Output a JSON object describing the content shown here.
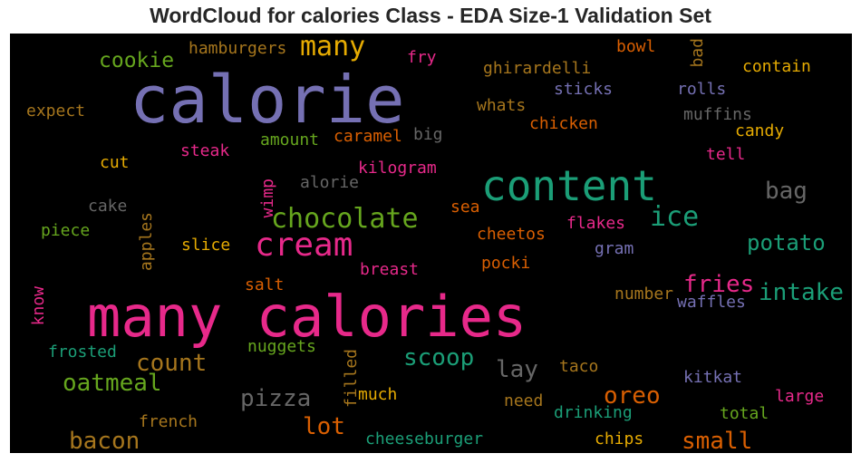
{
  "title": "WordCloud for calories Class - EDA Size-1 Validation Set",
  "colors": {
    "purple": "#7570b3",
    "pink": "#e7298a",
    "teal": "#1b9e77",
    "green": "#66a61e",
    "orange": "#d95f02",
    "gold": "#e6ab02",
    "brown": "#a6761d",
    "gray": "#666666"
  },
  "words": [
    {
      "text": "calorie",
      "color": "#7570b3"
    },
    {
      "text": "many calories",
      "color": "#e7298a"
    },
    {
      "text": "content",
      "color": "#1b9e77"
    },
    {
      "text": "cream",
      "color": "#e7298a"
    },
    {
      "text": "chocolate",
      "color": "#66a61e"
    },
    {
      "text": "many",
      "color": "#e6ab02"
    },
    {
      "text": "ice",
      "color": "#1b9e77"
    },
    {
      "text": "cookie",
      "color": "#66a61e"
    },
    {
      "text": "hamburgers",
      "color": "#a6761d"
    },
    {
      "text": "fry",
      "color": "#e7298a"
    },
    {
      "text": "bowl",
      "color": "#d95f02"
    },
    {
      "text": "bad",
      "color": "#a6761d"
    },
    {
      "text": "contain",
      "color": "#e6ab02"
    },
    {
      "text": "ghirardelli",
      "color": "#a6761d"
    },
    {
      "text": "sticks",
      "color": "#7570b3"
    },
    {
      "text": "rolls",
      "color": "#7570b3"
    },
    {
      "text": "expect",
      "color": "#a6761d"
    },
    {
      "text": "whats",
      "color": "#a6761d"
    },
    {
      "text": "muffins",
      "color": "#666666"
    },
    {
      "text": "chicken",
      "color": "#d95f02"
    },
    {
      "text": "candy",
      "color": "#e6ab02"
    },
    {
      "text": "amount",
      "color": "#66a61e"
    },
    {
      "text": "caramel",
      "color": "#d95f02"
    },
    {
      "text": "big",
      "color": "#666666"
    },
    {
      "text": "steak",
      "color": "#e7298a"
    },
    {
      "text": "tell",
      "color": "#e7298a"
    },
    {
      "text": "cut",
      "color": "#e6ab02"
    },
    {
      "text": "kilogram",
      "color": "#e7298a"
    },
    {
      "text": "wimp",
      "color": "#e7298a"
    },
    {
      "text": "alorie",
      "color": "#666666"
    },
    {
      "text": "bag",
      "color": "#666666"
    },
    {
      "text": "cake",
      "color": "#666666"
    },
    {
      "text": "sea",
      "color": "#d95f02"
    },
    {
      "text": "apples",
      "color": "#a6761d"
    },
    {
      "text": "piece",
      "color": "#66a61e"
    },
    {
      "text": "cheetos",
      "color": "#d95f02"
    },
    {
      "text": "flakes",
      "color": "#e7298a"
    },
    {
      "text": "potato",
      "color": "#1b9e77"
    },
    {
      "text": "slice",
      "color": "#e6ab02"
    },
    {
      "text": "gram",
      "color": "#7570b3"
    },
    {
      "text": "pocki",
      "color": "#d95f02"
    },
    {
      "text": "breast",
      "color": "#e7298a"
    },
    {
      "text": "fries",
      "color": "#e7298a"
    },
    {
      "text": "intake",
      "color": "#1b9e77"
    },
    {
      "text": "know",
      "color": "#e7298a"
    },
    {
      "text": "salt",
      "color": "#d95f02"
    },
    {
      "text": "number",
      "color": "#a6761d"
    },
    {
      "text": "waffles",
      "color": "#7570b3"
    },
    {
      "text": "frosted",
      "color": "#1b9e77"
    },
    {
      "text": "nuggets",
      "color": "#66a61e"
    },
    {
      "text": "filled",
      "color": "#a6761d"
    },
    {
      "text": "scoop",
      "color": "#1b9e77"
    },
    {
      "text": "count",
      "color": "#a6761d"
    },
    {
      "text": "lay",
      "color": "#666666"
    },
    {
      "text": "taco",
      "color": "#a6761d"
    },
    {
      "text": "oatmeal",
      "color": "#66a61e"
    },
    {
      "text": "kitkat",
      "color": "#7570b3"
    },
    {
      "text": "pizza",
      "color": "#666666"
    },
    {
      "text": "much",
      "color": "#e6ab02"
    },
    {
      "text": "oreo",
      "color": "#d95f02"
    },
    {
      "text": "large",
      "color": "#e7298a"
    },
    {
      "text": "need",
      "color": "#a6761d"
    },
    {
      "text": "lot",
      "color": "#d95f02"
    },
    {
      "text": "drinking",
      "color": "#1b9e77"
    },
    {
      "text": "french",
      "color": "#a6761d"
    },
    {
      "text": "total",
      "color": "#66a61e"
    },
    {
      "text": "bacon",
      "color": "#a6761d"
    },
    {
      "text": "small",
      "color": "#d95f02"
    },
    {
      "text": "cheeseburger",
      "color": "#1b9e77"
    },
    {
      "text": "chips",
      "color": "#e6ab02"
    }
  ]
}
